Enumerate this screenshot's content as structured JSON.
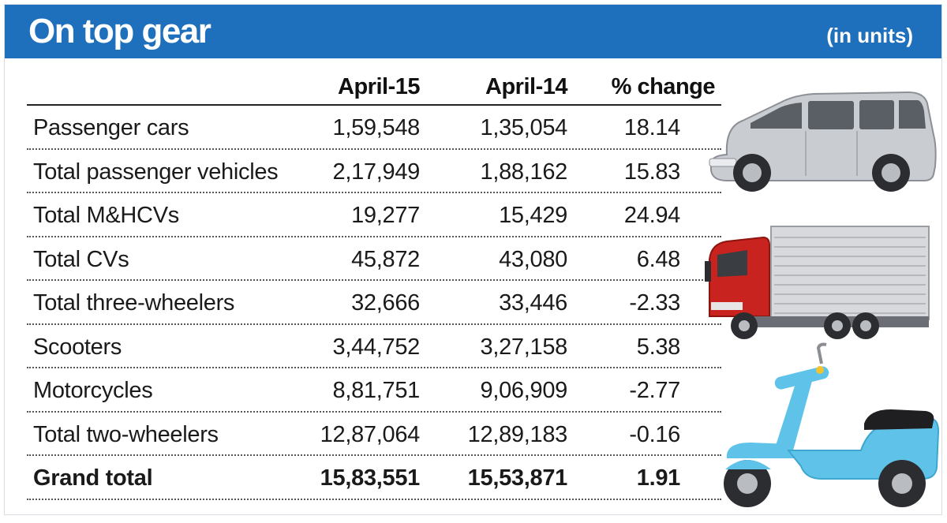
{
  "header": {
    "title": "On top gear",
    "unit": "(in units)"
  },
  "colors": {
    "header_bg": "#1e70bd",
    "car_body": "#c9ccd1",
    "truck_cab": "#c8231e",
    "scooter_body": "#5fc3e9"
  },
  "icons": [
    "van-icon",
    "truck-icon",
    "scooter-icon"
  ],
  "chart_data": {
    "type": "table",
    "title": "On top gear",
    "subtitle": "(in units)",
    "columns": [
      "April-15",
      "April-14",
      "% change"
    ],
    "rows": [
      {
        "label": "Passenger cars",
        "april_15": "1,59,548",
        "april_14": "1,35,054",
        "change": "18.14"
      },
      {
        "label": "Total passenger vehicles",
        "april_15": "2,17,949",
        "april_14": "1,88,162",
        "change": "15.83"
      },
      {
        "label": "Total M&HCVs",
        "april_15": "19,277",
        "april_14": "15,429",
        "change": "24.94"
      },
      {
        "label": "Total CVs",
        "april_15": "45,872",
        "april_14": "43,080",
        "change": "6.48"
      },
      {
        "label": "Total three-wheelers",
        "april_15": "32,666",
        "april_14": "33,446",
        "change": "-2.33"
      },
      {
        "label": "Scooters",
        "april_15": "3,44,752",
        "april_14": "3,27,158",
        "change": "5.38"
      },
      {
        "label": "Motorcycles",
        "april_15": "8,81,751",
        "april_14": "9,06,909",
        "change": "-2.77"
      },
      {
        "label": "Total two-wheelers",
        "april_15": "12,87,064",
        "april_14": "12,89,183",
        "change": "-0.16"
      },
      {
        "label": "Grand total",
        "april_15": "15,83,551",
        "april_14": "15,53,871",
        "change": "1.91"
      }
    ]
  }
}
